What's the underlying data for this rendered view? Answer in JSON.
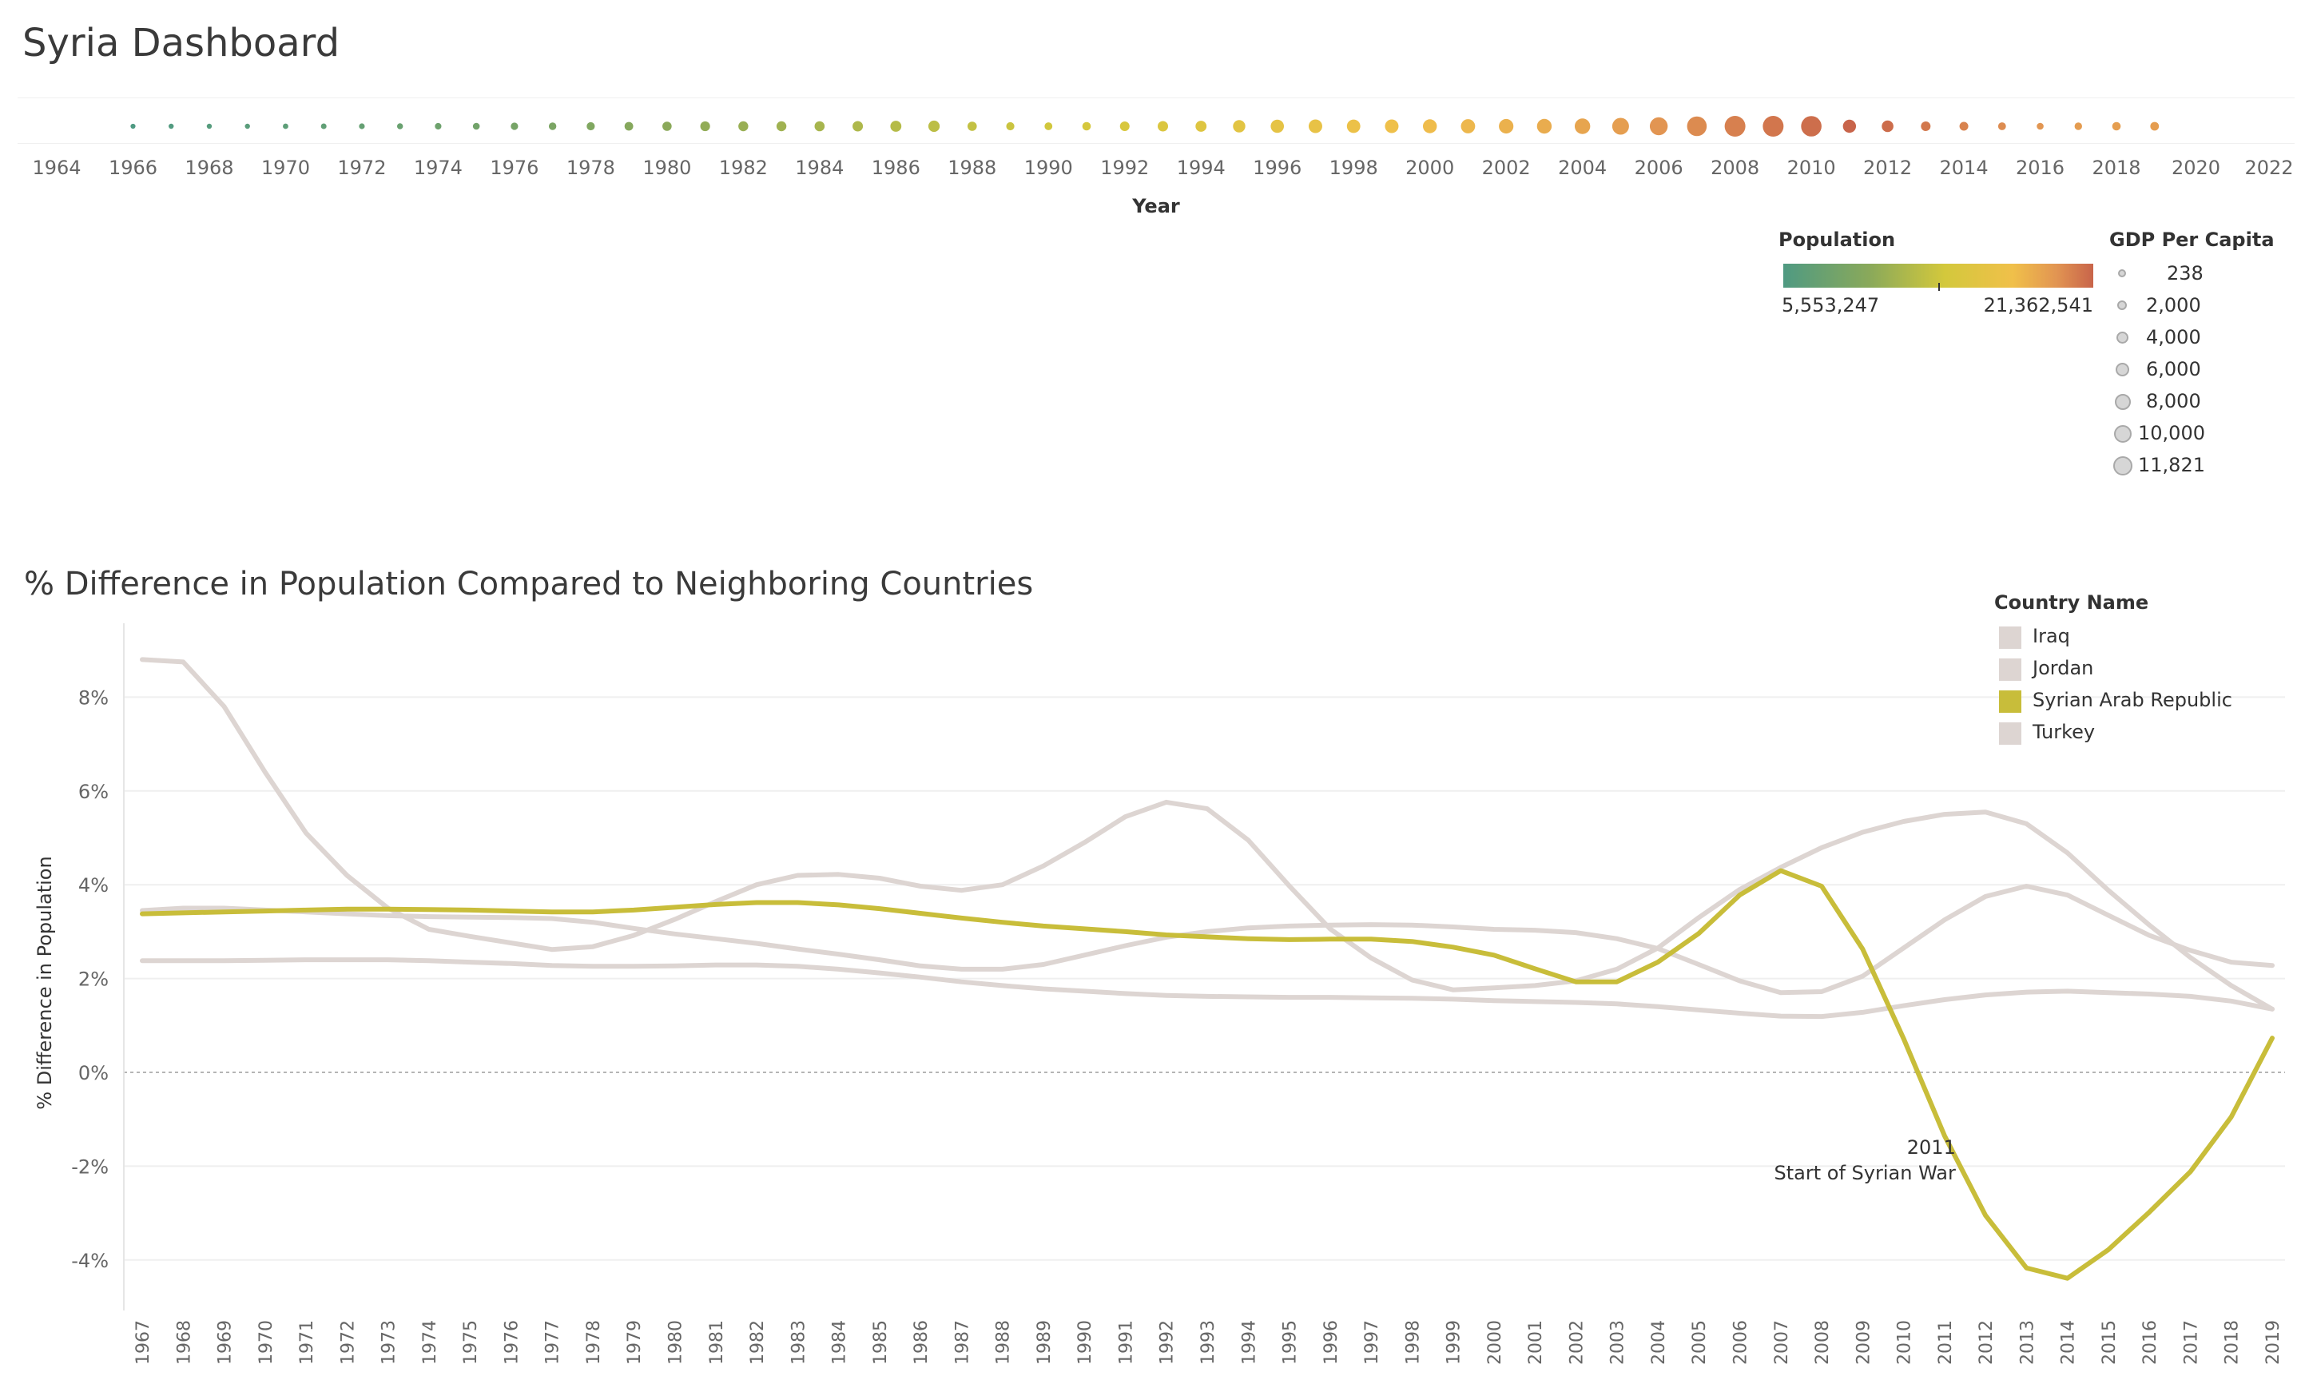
{
  "dashboard": {
    "title": "Syria Dashboard"
  },
  "colors": {
    "syria": "#c8bd3a",
    "neighbors": "#ddd5d2",
    "population_ramp": [
      "#4f9a82",
      "#8aa95a",
      "#d3c83c",
      "#f0c04a",
      "#e29552",
      "#c8644a"
    ]
  },
  "legends": {
    "population": {
      "title": "Population",
      "min_label": "5,553,247",
      "max_label": "21,362,541"
    },
    "gdp": {
      "title": "GDP Per Capita",
      "items": [
        "238",
        "2,000",
        "4,000",
        "6,000",
        "8,000",
        "10,000",
        "11,821"
      ]
    },
    "country": {
      "title": "Country Name",
      "items": [
        "Iraq",
        "Jordan",
        "Syrian Arab Republic",
        "Turkey"
      ]
    }
  },
  "chart_data": [
    {
      "type": "scatter",
      "xlabel": "Year",
      "xlim": [
        1964,
        2022
      ],
      "x_ticks": [
        "1964",
        "1966",
        "1968",
        "1970",
        "1972",
        "1974",
        "1976",
        "1978",
        "1980",
        "1982",
        "1984",
        "1986",
        "1988",
        "1990",
        "1992",
        "1994",
        "1996",
        "1998",
        "2000",
        "2002",
        "2004",
        "2006",
        "2008",
        "2010",
        "2012",
        "2014",
        "2016",
        "2018",
        "2020",
        "2022"
      ],
      "size_encoding": "GDP Per Capita",
      "color_encoding": "Population",
      "years": [
        1966,
        1967,
        1968,
        1969,
        1970,
        1971,
        1972,
        1973,
        1974,
        1975,
        1976,
        1977,
        1978,
        1979,
        1980,
        1981,
        1982,
        1983,
        1984,
        1985,
        1986,
        1987,
        1988,
        1989,
        1990,
        1991,
        1992,
        1993,
        1994,
        1995,
        1996,
        1997,
        1998,
        1999,
        2000,
        2001,
        2002,
        2003,
        2004,
        2005,
        2006,
        2007,
        2008,
        2009,
        2010,
        2011,
        2012,
        2013,
        2014,
        2015,
        2016,
        2017,
        2018,
        2019
      ],
      "population": [
        5553247,
        5738000,
        5928000,
        6124000,
        6325000,
        6532000,
        6746000,
        6966000,
        7195000,
        7433000,
        7680000,
        7938000,
        8204000,
        8480000,
        8762000,
        9052000,
        9350000,
        9652000,
        9958000,
        10264000,
        10570000,
        10875000,
        11180000,
        11486000,
        11794000,
        12108000,
        12430000,
        12763000,
        13107000,
        13461000,
        13825000,
        14196000,
        14572000,
        14952000,
        15336000,
        15725000,
        16122000,
        16541000,
        17009000,
        17557000,
        18185000,
        18878000,
        19576000,
        20197000,
        20721000,
        21362541,
        20818000,
        20086000,
        19384000,
        18751000,
        18161000,
        17722000,
        17504000,
        17591000
      ],
      "gdp_per_capita": [
        300,
        320,
        330,
        340,
        400,
        450,
        550,
        600,
        800,
        900,
        1100,
        1200,
        1500,
        1700,
        2000,
        2300,
        2400,
        2400,
        2500,
        2600,
        3000,
        3200,
        2000,
        1500,
        1300,
        1600,
        2200,
        2600,
        3000,
        3900,
        4600,
        4800,
        4700,
        4800,
        5100,
        5300,
        5600,
        5700,
        6400,
        7600,
        8600,
        10500,
        11800,
        11821,
        11500,
        4500,
        3400,
        2200,
        1800,
        1300,
        900,
        1200,
        1600,
        1700
      ]
    },
    {
      "type": "line",
      "title": "% Difference in Population Compared to Neighboring Countries",
      "ylabel": "% Difference in Population",
      "ylim": [
        -5,
        9
      ],
      "y_ticks": [
        "8%",
        "6%",
        "4%",
        "2%",
        "0%",
        "-2%",
        "-4%"
      ],
      "y_tick_values": [
        8,
        6,
        4,
        2,
        0,
        -2,
        -4
      ],
      "x": [
        1967,
        1968,
        1969,
        1970,
        1971,
        1972,
        1973,
        1974,
        1975,
        1976,
        1977,
        1978,
        1979,
        1980,
        1981,
        1982,
        1983,
        1984,
        1985,
        1986,
        1987,
        1988,
        1989,
        1990,
        1991,
        1992,
        1993,
        1994,
        1995,
        1996,
        1997,
        1998,
        1999,
        2000,
        2001,
        2002,
        2003,
        2004,
        2005,
        2006,
        2007,
        2008,
        2009,
        2010,
        2011,
        2012,
        2013,
        2014,
        2015,
        2016,
        2017,
        2018,
        2019
      ],
      "series": [
        {
          "name": "Iraq",
          "values": [
            3.45,
            3.5,
            3.5,
            3.46,
            3.42,
            3.38,
            3.34,
            3.32,
            3.31,
            3.3,
            3.28,
            3.2,
            3.07,
            2.95,
            2.85,
            2.75,
            2.63,
            2.52,
            2.4,
            2.27,
            2.2,
            2.2,
            2.3,
            2.5,
            2.7,
            2.88,
            3.0,
            3.08,
            3.12,
            3.14,
            3.15,
            3.14,
            3.1,
            3.05,
            3.03,
            2.98,
            2.85,
            2.64,
            2.3,
            1.95,
            1.7,
            1.72,
            2.05,
            2.65,
            3.25,
            3.75,
            3.97,
            3.78,
            3.35,
            2.92,
            2.6,
            2.35,
            2.28
          ]
        },
        {
          "name": "Jordan",
          "values": [
            8.8,
            8.75,
            7.8,
            6.4,
            5.1,
            4.2,
            3.5,
            3.05,
            2.9,
            2.76,
            2.62,
            2.68,
            2.92,
            3.26,
            3.64,
            4.0,
            4.2,
            4.22,
            4.14,
            3.97,
            3.88,
            4.0,
            4.4,
            4.9,
            5.45,
            5.76,
            5.62,
            4.95,
            3.98,
            3.06,
            2.44,
            1.97,
            1.76,
            1.8,
            1.85,
            1.95,
            2.2,
            2.65,
            3.3,
            3.9,
            4.37,
            4.79,
            5.12,
            5.35,
            5.5,
            5.55,
            5.3,
            4.68,
            3.88,
            3.14,
            2.45,
            1.85,
            1.35
          ]
        },
        {
          "name": "Syrian Arab Republic",
          "values": [
            3.38,
            3.4,
            3.42,
            3.44,
            3.46,
            3.48,
            3.48,
            3.47,
            3.46,
            3.44,
            3.42,
            3.42,
            3.46,
            3.52,
            3.58,
            3.62,
            3.62,
            3.57,
            3.49,
            3.39,
            3.29,
            3.2,
            3.12,
            3.06,
            3.0,
            2.93,
            2.89,
            2.85,
            2.83,
            2.84,
            2.84,
            2.79,
            2.67,
            2.5,
            2.21,
            1.93,
            1.93,
            2.35,
            2.96,
            3.78,
            4.3,
            3.97,
            2.63,
            0.72,
            -1.35,
            -3.05,
            -4.17,
            -4.39,
            -3.78,
            -2.98,
            -2.12,
            -0.95,
            0.73
          ]
        },
        {
          "name": "Turkey",
          "values": [
            2.38,
            2.38,
            2.38,
            2.39,
            2.4,
            2.4,
            2.4,
            2.38,
            2.35,
            2.32,
            2.28,
            2.26,
            2.26,
            2.27,
            2.29,
            2.29,
            2.26,
            2.2,
            2.12,
            2.03,
            1.93,
            1.85,
            1.78,
            1.73,
            1.68,
            1.64,
            1.62,
            1.61,
            1.6,
            1.6,
            1.59,
            1.58,
            1.56,
            1.53,
            1.51,
            1.49,
            1.46,
            1.4,
            1.33,
            1.26,
            1.2,
            1.19,
            1.28,
            1.42,
            1.55,
            1.65,
            1.71,
            1.73,
            1.7,
            1.67,
            1.62,
            1.52,
            1.35
          ]
        }
      ],
      "annotation": {
        "year": 2011,
        "lines": [
          "2011",
          "Start of  Syrian War"
        ]
      },
      "reference_line": 0,
      "grid": true,
      "legend_position": "top-right"
    }
  ]
}
